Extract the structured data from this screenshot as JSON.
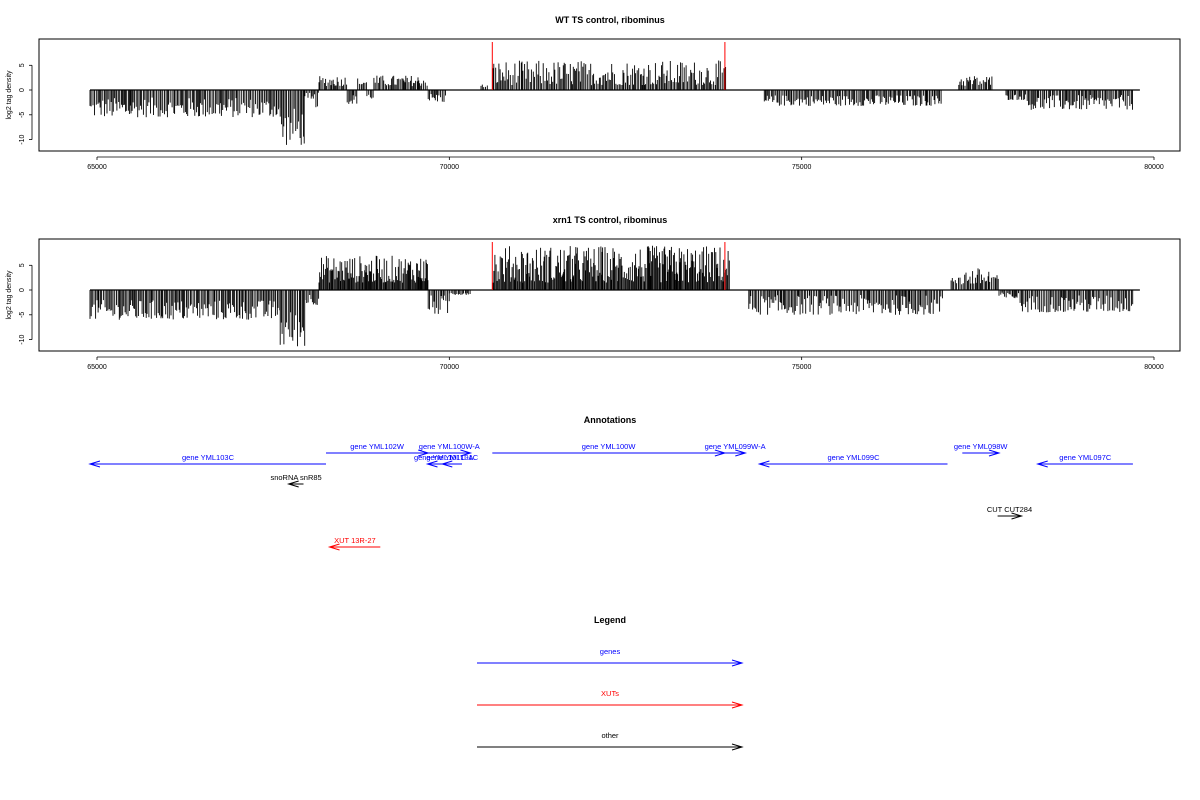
{
  "chart_data": [
    {
      "type": "bar",
      "title": "WT TS control, ribominus",
      "ylabel": "log2 tag density",
      "xlim": [
        64800,
        80000
      ],
      "ylim": [
        -11.5,
        9.5
      ],
      "xticks": [
        "65000",
        "70000",
        "75000",
        "80000"
      ],
      "yticks": [
        "5",
        "0",
        "-5",
        "-10"
      ],
      "grid": false,
      "baseline": [
        64900,
        79800
      ],
      "markers": {
        "color": "#ff0000",
        "x": [
          70610,
          73910
        ]
      },
      "segments": [
        {
          "from": 64900,
          "to": 67600,
          "min": -5.5,
          "max": -1.5
        },
        {
          "from": 67600,
          "to": 67950,
          "min": -11.2,
          "max": -3.5
        },
        {
          "from": 67950,
          "to": 68150,
          "min": -3.5,
          "max": -0.5
        },
        {
          "from": 68150,
          "to": 68550,
          "min": 0.8,
          "max": 3.0
        },
        {
          "from": 68550,
          "to": 68700,
          "min": -2.8,
          "max": -0.8
        },
        {
          "from": 68700,
          "to": 68830,
          "min": 0.8,
          "max": 2.5
        },
        {
          "from": 68830,
          "to": 68930,
          "min": -1.8,
          "max": -0.6
        },
        {
          "from": 68930,
          "to": 69700,
          "min": 0.8,
          "max": 3.0
        },
        {
          "from": 69700,
          "to": 69950,
          "min": -2.5,
          "max": -0.6
        },
        {
          "from": 70450,
          "to": 70550,
          "min": 0.5,
          "max": 1.2
        },
        {
          "from": 70620,
          "to": 73930,
          "min": 1.0,
          "max": 6.0
        },
        {
          "from": 74470,
          "to": 77000,
          "min": -3.2,
          "max": -1.0
        },
        {
          "from": 77230,
          "to": 77700,
          "min": 0.8,
          "max": 3.0
        },
        {
          "from": 77900,
          "to": 78200,
          "min": -2.0,
          "max": -0.8
        },
        {
          "from": 78200,
          "to": 79700,
          "min": -4.0,
          "max": -1.0
        }
      ]
    },
    {
      "type": "bar",
      "title": "xrn1 TS control, ribominus",
      "ylabel": "log2 tag density",
      "xlim": [
        64800,
        80000
      ],
      "ylim": [
        -11.5,
        9.5
      ],
      "xticks": [
        "65000",
        "70000",
        "75000",
        "80000"
      ],
      "yticks": [
        "5",
        "0",
        "-5",
        "-10"
      ],
      "grid": false,
      "baseline": [
        64900,
        79800
      ],
      "markers": {
        "color": "#ff0000",
        "x": [
          70610,
          73910
        ]
      },
      "segments": [
        {
          "from": 64900,
          "to": 67600,
          "min": -6.0,
          "max": -2.0
        },
        {
          "from": 67600,
          "to": 67950,
          "min": -11.5,
          "max": -4.0
        },
        {
          "from": 67950,
          "to": 68150,
          "min": -3.0,
          "max": -0.5
        },
        {
          "from": 68150,
          "to": 69700,
          "min": 1.5,
          "max": 7.0
        },
        {
          "from": 69700,
          "to": 70000,
          "min": -5.0,
          "max": -1.0
        },
        {
          "from": 70000,
          "to": 70300,
          "min": -1.0,
          "max": -0.3
        },
        {
          "from": 70620,
          "to": 73980,
          "min": 1.5,
          "max": 9.0
        },
        {
          "from": 74250,
          "to": 77000,
          "min": -5.0,
          "max": -1.0
        },
        {
          "from": 77120,
          "to": 77800,
          "min": 1.0,
          "max": 4.5
        },
        {
          "from": 77800,
          "to": 78100,
          "min": -1.8,
          "max": -0.5
        },
        {
          "from": 78100,
          "to": 79700,
          "min": -4.5,
          "max": -1.0
        }
      ]
    },
    {
      "type": "other",
      "title": "Annotations",
      "xlim": [
        64800,
        80000
      ],
      "features": [
        {
          "label": "gene YML103C",
          "start": 64900,
          "end": 68250,
          "strand": "-",
          "row": 1,
          "color": "#0000ff"
        },
        {
          "label": "gene YML102W",
          "start": 68250,
          "end": 69700,
          "strand": "+",
          "row": 0,
          "color": "#0000ff"
        },
        {
          "label": "gene YML101C-A",
          "start": 69690,
          "end": 70150,
          "strand": "-",
          "row": 1,
          "color": "#0000ff"
        },
        {
          "label": "gene YML101C",
          "start": 69900,
          "end": 70180,
          "strand": "-",
          "row": 1,
          "color": "#0000ff"
        },
        {
          "label": "gene YML100W-A",
          "start": 69700,
          "end": 70300,
          "strand": "+",
          "row": 0,
          "color": "#0000ff"
        },
        {
          "label": "gene YML100W",
          "start": 70610,
          "end": 73910,
          "strand": "+",
          "row": 0,
          "color": "#0000ff"
        },
        {
          "label": "gene YML099W-A",
          "start": 73910,
          "end": 74200,
          "strand": "+",
          "row": 0,
          "color": "#0000ff"
        },
        {
          "label": "gene YML099C",
          "start": 74400,
          "end": 77070,
          "strand": "-",
          "row": 1,
          "color": "#0000ff"
        },
        {
          "label": "gene YML098W",
          "start": 77280,
          "end": 77800,
          "strand": "+",
          "row": 0,
          "color": "#0000ff"
        },
        {
          "label": "gene YML097C",
          "start": 78350,
          "end": 79700,
          "strand": "-",
          "row": 1,
          "color": "#0000ff"
        },
        {
          "label": "snoRNA snR85",
          "start": 67720,
          "end": 67930,
          "strand": "-",
          "row": 2,
          "color": "#000000"
        },
        {
          "label": "CUT CUT284",
          "start": 77780,
          "end": 78120,
          "strand": "+",
          "row": 3,
          "color": "#000000"
        },
        {
          "label": "XUT 13R-27",
          "start": 68300,
          "end": 69020,
          "strand": "-",
          "row": 4,
          "color": "#ff0000"
        }
      ]
    },
    {
      "type": "other",
      "title": "Legend",
      "entries": [
        {
          "label": "genes",
          "color": "#0000ff"
        },
        {
          "label": "XUTs",
          "color": "#ff0000"
        },
        {
          "label": "other",
          "color": "#000000"
        }
      ]
    }
  ]
}
